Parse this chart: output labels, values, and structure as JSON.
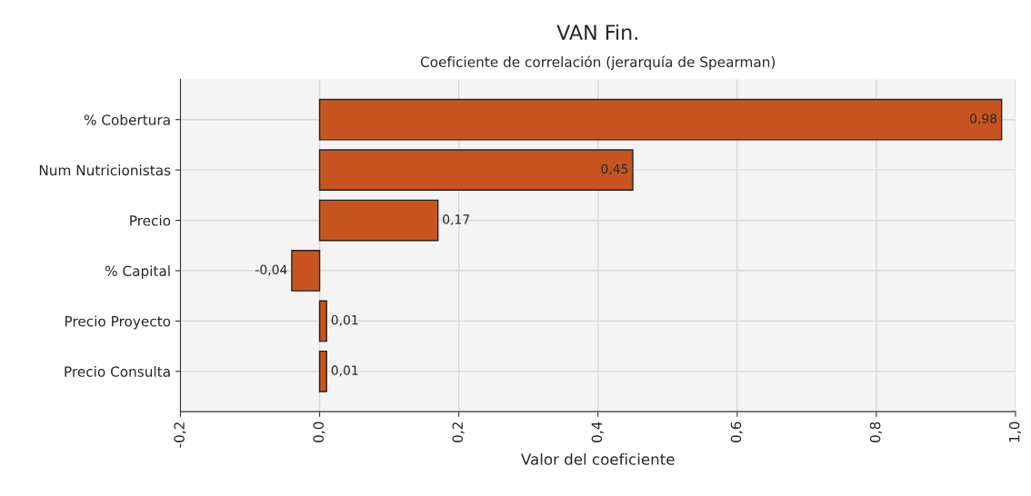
{
  "chart_data": {
    "type": "bar",
    "orientation": "horizontal",
    "title": "VAN Fin.",
    "subtitle": "Coeficiente de correlación (jerarquía de Spearman)",
    "xlabel": "Valor del coeficiente",
    "categories": [
      "% Cobertura",
      "Num Nutricionistas",
      "Precio",
      "% Capital",
      "Precio Proyecto",
      "Precio Consulta"
    ],
    "values": [
      0.98,
      0.45,
      0.17,
      -0.04,
      0.01,
      0.01
    ],
    "value_labels": [
      "0,98",
      "0,45",
      "0,17",
      "-0,04",
      "0,01",
      "0,01"
    ],
    "color": "#c8541f",
    "xlim": [
      -0.2,
      1.0
    ],
    "xticks": [
      {
        "value": -0.2,
        "label": "-0,2"
      },
      {
        "value": 0.0,
        "label": "0,0"
      },
      {
        "value": 0.2,
        "label": "0,2"
      },
      {
        "value": 0.4,
        "label": "0,4"
      },
      {
        "value": 0.6,
        "label": "0,6"
      },
      {
        "value": 0.8,
        "label": "0,8"
      },
      {
        "value": 1.0,
        "label": "1,0"
      }
    ],
    "grid": true,
    "legend": false
  }
}
